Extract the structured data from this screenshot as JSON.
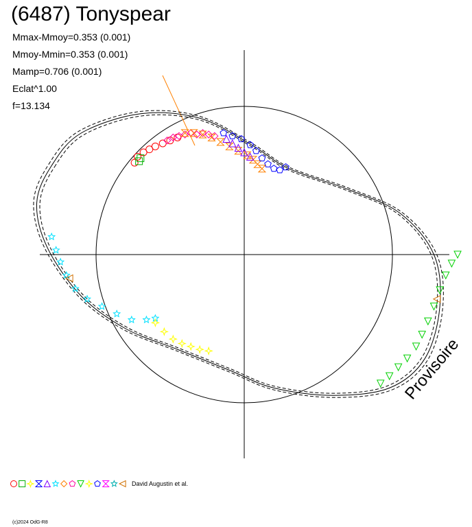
{
  "header": {
    "title": "(6487) Tonyspear",
    "stats": [
      "Mmax-Mmoy=0.353 (0.001)",
      "Mmoy-Mmin=0.353 (0.001)",
      "Mamp=0.706 (0.001)",
      "Eclat^1.00",
      "f=13.134"
    ]
  },
  "watermark": "Provisoire",
  "legend": {
    "author": "David Augustin et al."
  },
  "footer": {
    "copyright": "(c)2024 OdG-R8"
  },
  "chart_data": {
    "type": "scatter",
    "subtype": "polar lightcurve plot",
    "title": "(6487) Tonyspear",
    "axes": {
      "crosshair": true,
      "reference_circle": true
    },
    "series": [
      {
        "marker": "circle",
        "color": "#ff0000",
        "points": [
          [
            -0.74,
            0.62
          ],
          [
            -0.72,
            0.66
          ],
          [
            -0.68,
            0.69
          ],
          [
            -0.64,
            0.71
          ],
          [
            -0.6,
            0.73
          ],
          [
            -0.55,
            0.75
          ],
          [
            -0.5,
            0.77
          ],
          [
            -0.45,
            0.79
          ]
        ]
      },
      {
        "marker": "square",
        "color": "#00b000",
        "points": [
          [
            -0.71,
            0.63
          ],
          [
            -0.7,
            0.65
          ]
        ]
      },
      {
        "marker": "diamond",
        "color": "#ff00a0",
        "points": [
          [
            -0.52,
            0.77
          ],
          [
            -0.48,
            0.79
          ],
          [
            -0.44,
            0.8
          ],
          [
            -0.4,
            0.81
          ],
          [
            -0.36,
            0.82
          ],
          [
            -0.32,
            0.81
          ],
          [
            -0.28,
            0.82
          ],
          [
            -0.24,
            0.81
          ],
          [
            -0.2,
            0.8
          ]
        ]
      },
      {
        "marker": "hourglass",
        "color": "#ff8000",
        "points": [
          [
            -0.4,
            0.82
          ],
          [
            -0.34,
            0.82
          ],
          [
            -0.28,
            0.81
          ],
          [
            -0.22,
            0.79
          ],
          [
            -0.16,
            0.76
          ],
          [
            -0.1,
            0.73
          ],
          [
            -0.04,
            0.7
          ],
          [
            0.02,
            0.67
          ],
          [
            0.06,
            0.64
          ],
          [
            0.09,
            0.61
          ],
          [
            0.12,
            0.58
          ]
        ]
      },
      {
        "marker": "triangle",
        "color": "#8000ff",
        "points": [
          [
            -0.12,
            0.78
          ],
          [
            -0.08,
            0.75
          ],
          [
            -0.04,
            0.72
          ],
          [
            0.0,
            0.69
          ],
          [
            0.04,
            0.66
          ]
        ]
      },
      {
        "marker": "pentagon",
        "color": "#0000ff",
        "points": [
          [
            -0.14,
            0.82
          ],
          [
            -0.08,
            0.8
          ],
          [
            -0.02,
            0.78
          ],
          [
            0.04,
            0.74
          ],
          [
            0.08,
            0.7
          ],
          [
            0.12,
            0.65
          ],
          [
            0.16,
            0.61
          ],
          [
            0.2,
            0.58
          ],
          [
            0.24,
            0.57
          ],
          [
            0.28,
            0.59
          ]
        ]
      },
      {
        "marker": "star",
        "color": "#00e0ff",
        "points": [
          [
            -1.3,
            0.12
          ],
          [
            -1.27,
            0.03
          ],
          [
            -1.24,
            -0.05
          ],
          [
            -1.2,
            -0.14
          ],
          [
            -1.14,
            -0.23
          ],
          [
            -1.06,
            -0.3
          ],
          [
            -0.96,
            -0.35
          ],
          [
            -0.86,
            -0.4
          ],
          [
            -0.76,
            -0.44
          ],
          [
            -0.66,
            -0.44
          ],
          [
            -0.6,
            -0.43
          ]
        ]
      },
      {
        "marker": "star4",
        "color": "#ffff00",
        "points": [
          [
            -0.6,
            -0.46
          ],
          [
            -0.54,
            -0.52
          ],
          [
            -0.48,
            -0.57
          ],
          [
            -0.42,
            -0.6
          ],
          [
            -0.36,
            -0.62
          ],
          [
            -0.3,
            -0.64
          ],
          [
            -0.24,
            -0.65
          ]
        ]
      },
      {
        "marker": "triangle-down",
        "color": "#00d000",
        "points": [
          [
            0.92,
            -0.87
          ],
          [
            0.98,
            -0.82
          ],
          [
            1.04,
            -0.76
          ],
          [
            1.1,
            -0.7
          ],
          [
            1.16,
            -0.62
          ],
          [
            1.2,
            -0.54
          ],
          [
            1.24,
            -0.45
          ],
          [
            1.28,
            -0.35
          ],
          [
            1.32,
            -0.24
          ],
          [
            1.36,
            -0.14
          ],
          [
            1.4,
            -0.06
          ],
          [
            1.44,
            0.0
          ]
        ]
      },
      {
        "marker": "triangle-left",
        "color": "#d07000",
        "points": [
          [
            -1.18,
            -0.16
          ],
          [
            1.3,
            -0.3
          ]
        ]
      }
    ],
    "legend_markers": [
      {
        "marker": "circle",
        "color": "#ff0000"
      },
      {
        "marker": "square",
        "color": "#00b000"
      },
      {
        "marker": "star4",
        "color": "#ffff00"
      },
      {
        "marker": "hourglass",
        "color": "#0000ff"
      },
      {
        "marker": "triangle",
        "color": "#8000ff"
      },
      {
        "marker": "star",
        "color": "#00e0ff"
      },
      {
        "marker": "diamond",
        "color": "#ff8000"
      },
      {
        "marker": "pentagon",
        "color": "#ff00a0"
      },
      {
        "marker": "triangle-down",
        "color": "#00d000"
      },
      {
        "marker": "star4",
        "color": "#ffff00"
      },
      {
        "marker": "pentagon",
        "color": "#0000ff"
      },
      {
        "marker": "hourglass",
        "color": "#ff00ff"
      },
      {
        "marker": "star",
        "color": "#00b0b0"
      },
      {
        "marker": "triangle-left",
        "color": "#d07000"
      }
    ]
  }
}
